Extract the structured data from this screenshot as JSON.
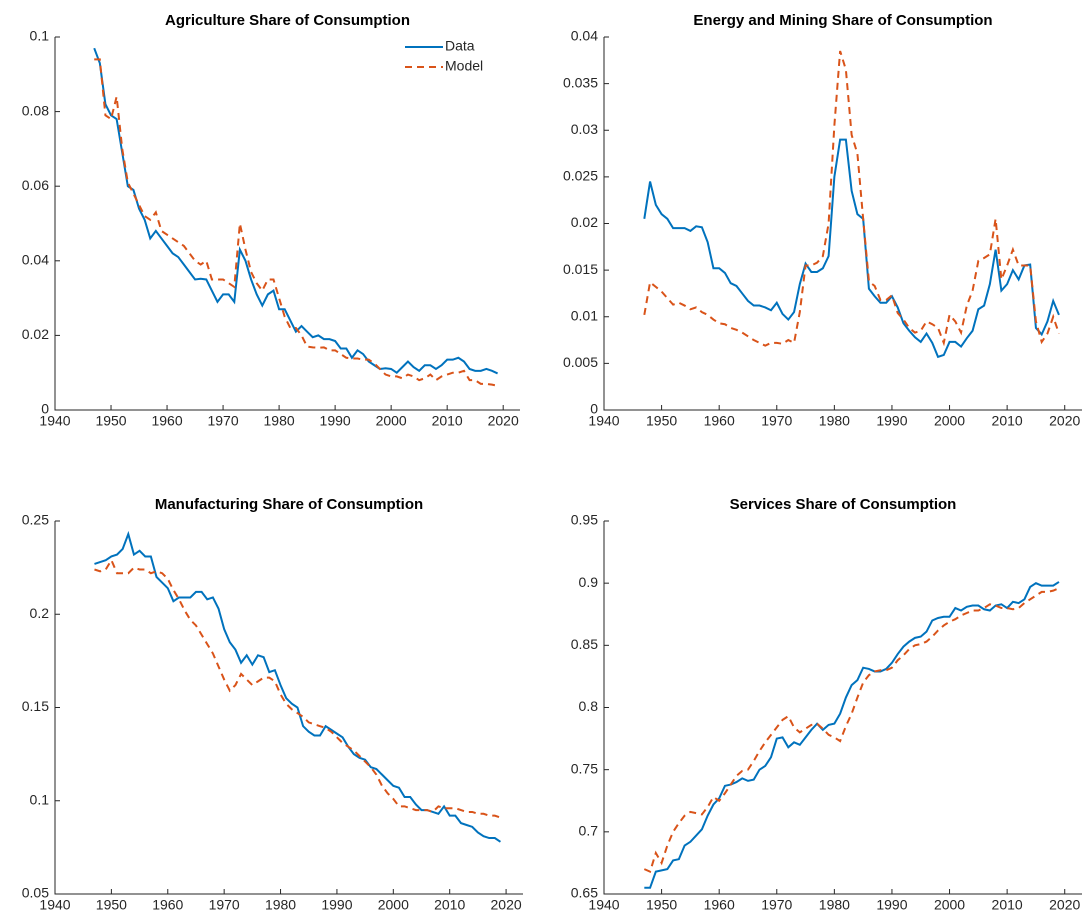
{
  "chart_data": [
    {
      "type": "line",
      "title": "Agriculture Share of Consumption",
      "legend": "upper right",
      "x": [
        1947,
        1948,
        1949,
        1950,
        1951,
        1952,
        1953,
        1954,
        1955,
        1956,
        1957,
        1958,
        1959,
        1960,
        1961,
        1962,
        1963,
        1964,
        1965,
        1966,
        1967,
        1968,
        1969,
        1970,
        1971,
        1972,
        1973,
        1974,
        1975,
        1976,
        1977,
        1978,
        1979,
        1980,
        1981,
        1982,
        1983,
        1984,
        1985,
        1986,
        1987,
        1988,
        1989,
        1990,
        1991,
        1992,
        1993,
        1994,
        1995,
        1996,
        1997,
        1998,
        1999,
        2000,
        2001,
        2002,
        2003,
        2004,
        2005,
        2006,
        2007,
        2008,
        2009,
        2010,
        2011,
        2012,
        2013,
        2014,
        2015,
        2016,
        2017,
        2018,
        2019
      ],
      "xlim": [
        1940,
        2023
      ],
      "xticks": [
        1940,
        1950,
        1960,
        1970,
        1980,
        1990,
        2000,
        2010,
        2020
      ],
      "ylim": [
        0,
        0.1
      ],
      "yticks": [
        0,
        0.02,
        0.04,
        0.06,
        0.08,
        0.1
      ],
      "series": [
        {
          "name": "Data",
          "color": "#0072BD",
          "dash": "solid",
          "values": [
            0.097,
            0.093,
            0.082,
            0.079,
            0.078,
            0.069,
            0.06,
            0.059,
            0.054,
            0.051,
            0.046,
            0.048,
            0.046,
            0.044,
            0.042,
            0.041,
            0.039,
            0.037,
            0.035,
            0.0352,
            0.035,
            0.032,
            0.029,
            0.031,
            0.031,
            0.029,
            0.043,
            0.04,
            0.035,
            0.031,
            0.028,
            0.031,
            0.032,
            0.027,
            0.027,
            0.024,
            0.021,
            0.0225,
            0.021,
            0.0195,
            0.02,
            0.019,
            0.019,
            0.0185,
            0.0165,
            0.0165,
            0.014,
            0.016,
            0.015,
            0.013,
            0.012,
            0.011,
            0.0112,
            0.011,
            0.01,
            0.0115,
            0.013,
            0.0115,
            0.0105,
            0.012,
            0.012,
            0.011,
            0.012,
            0.0135,
            0.0135,
            0.014,
            0.013,
            0.011,
            0.0105,
            0.0105,
            0.011,
            0.0105,
            0.0098
          ]
        },
        {
          "name": "Model",
          "color": "#D95319",
          "dash": "dashed",
          "values": [
            0.094,
            0.094,
            0.079,
            0.078,
            0.084,
            0.07,
            0.061,
            0.058,
            0.055,
            0.052,
            0.051,
            0.053,
            0.048,
            0.047,
            0.046,
            0.045,
            0.044,
            0.042,
            0.04,
            0.039,
            0.04,
            0.035,
            0.035,
            0.035,
            0.034,
            0.033,
            0.05,
            0.043,
            0.037,
            0.034,
            0.032,
            0.035,
            0.035,
            0.03,
            0.025,
            0.022,
            0.022,
            0.02,
            0.017,
            0.0168,
            0.0167,
            0.0168,
            0.016,
            0.016,
            0.015,
            0.014,
            0.0138,
            0.0138,
            0.0135,
            0.0135,
            0.0125,
            0.011,
            0.0095,
            0.009,
            0.009,
            0.0085,
            0.0095,
            0.009,
            0.008,
            0.0085,
            0.0095,
            0.008,
            0.009,
            0.0095,
            0.01,
            0.01,
            0.0105,
            0.008,
            0.008,
            0.007,
            0.007,
            0.0068,
            0.0065
          ]
        }
      ]
    },
    {
      "type": "line",
      "title": "Energy and Mining Share of Consumption",
      "x": [
        1947,
        1948,
        1949,
        1950,
        1951,
        1952,
        1953,
        1954,
        1955,
        1956,
        1957,
        1958,
        1959,
        1960,
        1961,
        1962,
        1963,
        1964,
        1965,
        1966,
        1967,
        1968,
        1969,
        1970,
        1971,
        1972,
        1973,
        1974,
        1975,
        1976,
        1977,
        1978,
        1979,
        1980,
        1981,
        1982,
        1983,
        1984,
        1985,
        1986,
        1987,
        1988,
        1989,
        1990,
        1991,
        1992,
        1993,
        1994,
        1995,
        1996,
        1997,
        1998,
        1999,
        2000,
        2001,
        2002,
        2003,
        2004,
        2005,
        2006,
        2007,
        2008,
        2009,
        2010,
        2011,
        2012,
        2013,
        2014,
        2015,
        2016,
        2017,
        2018,
        2019
      ],
      "xlim": [
        1940,
        2023
      ],
      "xticks": [
        1940,
        1950,
        1960,
        1970,
        1980,
        1990,
        2000,
        2010,
        2020
      ],
      "ylim": [
        0,
        0.04
      ],
      "yticks": [
        0,
        0.005,
        0.01,
        0.015,
        0.02,
        0.025,
        0.03,
        0.035,
        0.04
      ],
      "series": [
        {
          "name": "Data",
          "color": "#0072BD",
          "dash": "solid",
          "values": [
            0.0205,
            0.0245,
            0.022,
            0.021,
            0.0205,
            0.0195,
            0.0195,
            0.0195,
            0.0192,
            0.0197,
            0.0196,
            0.018,
            0.0152,
            0.0152,
            0.0147,
            0.0136,
            0.0133,
            0.0125,
            0.0117,
            0.0112,
            0.0112,
            0.011,
            0.0107,
            0.0115,
            0.0103,
            0.0097,
            0.0105,
            0.0135,
            0.0157,
            0.0148,
            0.0148,
            0.0152,
            0.0165,
            0.025,
            0.029,
            0.029,
            0.0235,
            0.021,
            0.0205,
            0.013,
            0.0122,
            0.0115,
            0.0115,
            0.0122,
            0.011,
            0.0093,
            0.0085,
            0.0078,
            0.0073,
            0.0082,
            0.0072,
            0.0057,
            0.0059,
            0.0073,
            0.0073,
            0.0068,
            0.0077,
            0.0085,
            0.0108,
            0.0112,
            0.0135,
            0.0172,
            0.0128,
            0.0135,
            0.015,
            0.014,
            0.0155,
            0.0156,
            0.0088,
            0.0081,
            0.0095,
            0.0117,
            0.0102
          ]
        },
        {
          "name": "Model",
          "color": "#D95319",
          "dash": "dashed",
          "values": [
            0.0102,
            0.0137,
            0.0132,
            0.0127,
            0.012,
            0.0113,
            0.0115,
            0.0112,
            0.0108,
            0.011,
            0.0105,
            0.0102,
            0.0097,
            0.0093,
            0.0092,
            0.0088,
            0.0086,
            0.0083,
            0.0079,
            0.0075,
            0.0072,
            0.0069,
            0.0072,
            0.0072,
            0.0071,
            0.0075,
            0.0072,
            0.0105,
            0.0155,
            0.0155,
            0.0158,
            0.0165,
            0.02,
            0.0305,
            0.0385,
            0.0365,
            0.0295,
            0.0275,
            0.0205,
            0.0138,
            0.0133,
            0.0118,
            0.0118,
            0.0123,
            0.0104,
            0.0097,
            0.0088,
            0.0083,
            0.0085,
            0.0095,
            0.0092,
            0.0088,
            0.0072,
            0.0102,
            0.0095,
            0.0083,
            0.0112,
            0.0128,
            0.016,
            0.0163,
            0.0167,
            0.0205,
            0.014,
            0.0155,
            0.0172,
            0.0155,
            0.0155,
            0.0155,
            0.0095,
            0.0073,
            0.0082,
            0.01,
            0.0082
          ]
        }
      ]
    },
    {
      "type": "line",
      "title": "Manufacturing Share of Consumption",
      "x": [
        1947,
        1948,
        1949,
        1950,
        1951,
        1952,
        1953,
        1954,
        1955,
        1956,
        1957,
        1958,
        1959,
        1960,
        1961,
        1962,
        1963,
        1964,
        1965,
        1966,
        1967,
        1968,
        1969,
        1970,
        1971,
        1972,
        1973,
        1974,
        1975,
        1976,
        1977,
        1978,
        1979,
        1980,
        1981,
        1982,
        1983,
        1984,
        1985,
        1986,
        1987,
        1988,
        1989,
        1990,
        1991,
        1992,
        1993,
        1994,
        1995,
        1996,
        1997,
        1998,
        1999,
        2000,
        2001,
        2002,
        2003,
        2004,
        2005,
        2006,
        2007,
        2008,
        2009,
        2010,
        2011,
        2012,
        2013,
        2014,
        2015,
        2016,
        2017,
        2018,
        2019
      ],
      "xlim": [
        1940,
        2023
      ],
      "xticks": [
        1940,
        1950,
        1960,
        1970,
        1980,
        1990,
        2000,
        2010,
        2020
      ],
      "ylim": [
        0.05,
        0.25
      ],
      "yticks": [
        0.05,
        0.1,
        0.15,
        0.2,
        0.25
      ],
      "series": [
        {
          "name": "Data",
          "color": "#0072BD",
          "dash": "solid",
          "values": [
            0.227,
            0.228,
            0.229,
            0.231,
            0.232,
            0.235,
            0.243,
            0.232,
            0.234,
            0.231,
            0.231,
            0.22,
            0.217,
            0.214,
            0.207,
            0.209,
            0.209,
            0.209,
            0.212,
            0.212,
            0.208,
            0.209,
            0.203,
            0.192,
            0.185,
            0.181,
            0.174,
            0.178,
            0.173,
            0.178,
            0.177,
            0.169,
            0.17,
            0.162,
            0.155,
            0.152,
            0.15,
            0.14,
            0.137,
            0.135,
            0.135,
            0.14,
            0.138,
            0.136,
            0.134,
            0.129,
            0.125,
            0.123,
            0.122,
            0.118,
            0.117,
            0.114,
            0.111,
            0.108,
            0.107,
            0.102,
            0.102,
            0.098,
            0.095,
            0.095,
            0.094,
            0.093,
            0.097,
            0.092,
            0.092,
            0.088,
            0.087,
            0.086,
            0.083,
            0.081,
            0.08,
            0.08,
            0.078
          ]
        },
        {
          "name": "Model",
          "color": "#D95319",
          "dash": "dashed",
          "values": [
            0.224,
            0.223,
            0.224,
            0.229,
            0.222,
            0.222,
            0.222,
            0.225,
            0.224,
            0.224,
            0.222,
            0.223,
            0.222,
            0.219,
            0.213,
            0.208,
            0.202,
            0.197,
            0.194,
            0.189,
            0.184,
            0.179,
            0.172,
            0.165,
            0.159,
            0.162,
            0.168,
            0.165,
            0.162,
            0.164,
            0.166,
            0.166,
            0.164,
            0.157,
            0.152,
            0.149,
            0.147,
            0.145,
            0.142,
            0.141,
            0.14,
            0.139,
            0.137,
            0.134,
            0.131,
            0.129,
            0.127,
            0.124,
            0.121,
            0.118,
            0.114,
            0.108,
            0.104,
            0.101,
            0.097,
            0.097,
            0.096,
            0.095,
            0.095,
            0.095,
            0.094,
            0.097,
            0.096,
            0.096,
            0.096,
            0.095,
            0.094,
            0.094,
            0.093,
            0.093,
            0.092,
            0.092,
            0.091
          ]
        }
      ]
    },
    {
      "type": "line",
      "title": "Services Share of Consumption",
      "x": [
        1947,
        1948,
        1949,
        1950,
        1951,
        1952,
        1953,
        1954,
        1955,
        1956,
        1957,
        1958,
        1959,
        1960,
        1961,
        1962,
        1963,
        1964,
        1965,
        1966,
        1967,
        1968,
        1969,
        1970,
        1971,
        1972,
        1973,
        1974,
        1975,
        1976,
        1977,
        1978,
        1979,
        1980,
        1981,
        1982,
        1983,
        1984,
        1985,
        1986,
        1987,
        1988,
        1989,
        1990,
        1991,
        1992,
        1993,
        1994,
        1995,
        1996,
        1997,
        1998,
        1999,
        2000,
        2001,
        2002,
        2003,
        2004,
        2005,
        2006,
        2007,
        2008,
        2009,
        2010,
        2011,
        2012,
        2013,
        2014,
        2015,
        2016,
        2017,
        2018,
        2019
      ],
      "xlim": [
        1940,
        2023
      ],
      "xticks": [
        1940,
        1950,
        1960,
        1970,
        1980,
        1990,
        2000,
        2010,
        2020
      ],
      "ylim": [
        0.65,
        0.95
      ],
      "yticks": [
        0.65,
        0.7,
        0.75,
        0.8,
        0.85,
        0.9,
        0.95
      ],
      "series": [
        {
          "name": "Data",
          "color": "#0072BD",
          "dash": "solid",
          "values": [
            0.655,
            0.655,
            0.668,
            0.669,
            0.67,
            0.677,
            0.678,
            0.689,
            0.692,
            0.697,
            0.702,
            0.713,
            0.722,
            0.727,
            0.737,
            0.738,
            0.74,
            0.743,
            0.741,
            0.742,
            0.75,
            0.753,
            0.76,
            0.775,
            0.776,
            0.768,
            0.772,
            0.77,
            0.776,
            0.782,
            0.787,
            0.782,
            0.786,
            0.787,
            0.795,
            0.808,
            0.818,
            0.822,
            0.832,
            0.831,
            0.829,
            0.829,
            0.831,
            0.836,
            0.843,
            0.849,
            0.853,
            0.856,
            0.857,
            0.861,
            0.87,
            0.872,
            0.873,
            0.873,
            0.88,
            0.878,
            0.881,
            0.882,
            0.882,
            0.879,
            0.878,
            0.882,
            0.883,
            0.88,
            0.885,
            0.884,
            0.887,
            0.897,
            0.9,
            0.898,
            0.898,
            0.898,
            0.901
          ]
        },
        {
          "name": "Model",
          "color": "#D95319",
          "dash": "dashed",
          "values": [
            0.67,
            0.668,
            0.683,
            0.675,
            0.689,
            0.7,
            0.707,
            0.713,
            0.716,
            0.715,
            0.714,
            0.72,
            0.728,
            0.725,
            0.731,
            0.738,
            0.745,
            0.749,
            0.75,
            0.757,
            0.765,
            0.772,
            0.778,
            0.784,
            0.79,
            0.793,
            0.784,
            0.78,
            0.783,
            0.786,
            0.787,
            0.783,
            0.778,
            0.776,
            0.773,
            0.785,
            0.795,
            0.808,
            0.82,
            0.826,
            0.829,
            0.83,
            0.83,
            0.832,
            0.838,
            0.842,
            0.847,
            0.85,
            0.851,
            0.853,
            0.857,
            0.862,
            0.866,
            0.869,
            0.871,
            0.874,
            0.876,
            0.878,
            0.878,
            0.88,
            0.883,
            0.882,
            0.88,
            0.88,
            0.879,
            0.88,
            0.884,
            0.887,
            0.89,
            0.893,
            0.893,
            0.894,
            0.896
          ]
        }
      ]
    }
  ]
}
